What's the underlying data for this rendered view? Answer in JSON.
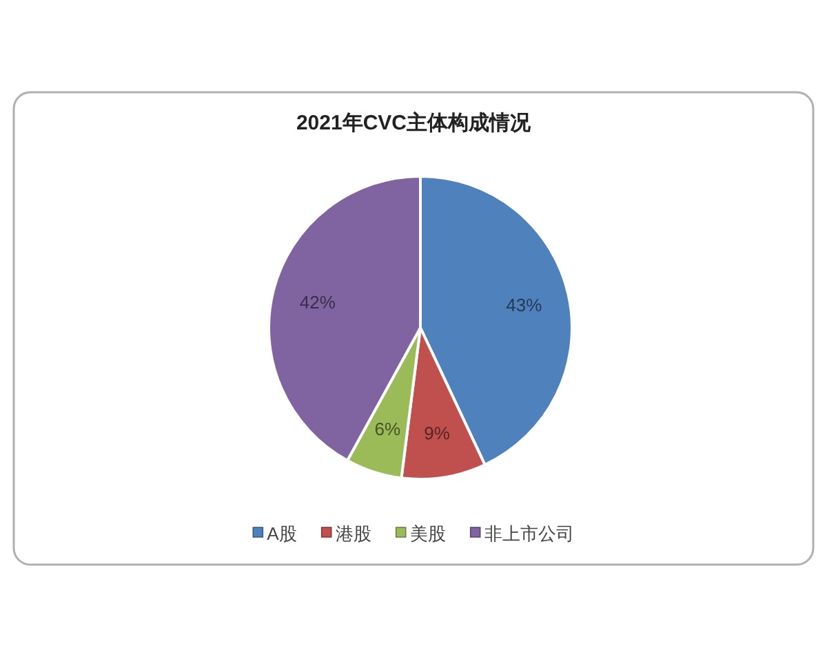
{
  "chart_data": {
    "type": "pie",
    "title": "2021年CVC主体构成情况",
    "categories": [
      "A股",
      "港股",
      "美股",
      "非上市公司"
    ],
    "values": [
      43,
      9,
      6,
      42
    ],
    "colors": [
      "#4f81bd",
      "#c0504d",
      "#9bbb59",
      "#8064a2"
    ],
    "value_labels": [
      "43%",
      "9%",
      "6%",
      "42%"
    ],
    "legend": "bottom"
  }
}
